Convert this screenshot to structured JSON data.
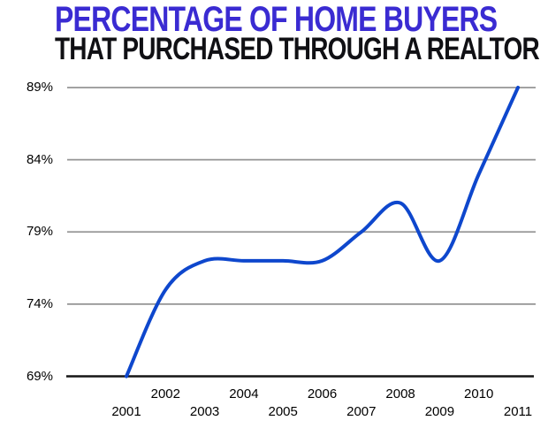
{
  "title": {
    "line1": "PERCENTAGE OF HOME BUYERS",
    "line2": "THAT PURCHASED THROUGH A REALTOR",
    "line1_color": "#3a2bd2",
    "line2_color": "#101014"
  },
  "chart_data": {
    "type": "line",
    "title": "PERCENTAGE OF HOME BUYERS THAT PURCHASED THROUGH A REALTOR",
    "series_name": "percent-purchased-through-realtor",
    "x": [
      2001,
      2002,
      2003,
      2004,
      2005,
      2006,
      2007,
      2008,
      2009,
      2010,
      2011
    ],
    "values": [
      69,
      75,
      77,
      77,
      77,
      77,
      79,
      81,
      77,
      83,
      89
    ],
    "xlabel": "",
    "ylabel": "",
    "ylim": [
      69,
      89
    ],
    "yticks": [
      {
        "label": "89%",
        "value": 89
      },
      {
        "label": "84%",
        "value": 84
      },
      {
        "label": "79%",
        "value": 79
      },
      {
        "label": "74%",
        "value": 74
      },
      {
        "label": "69%",
        "value": 69
      }
    ],
    "xticks": [
      {
        "label": "2001",
        "value": 2001
      },
      {
        "label": "2002",
        "value": 2002
      },
      {
        "label": "2003",
        "value": 2003
      },
      {
        "label": "2004",
        "value": 2004
      },
      {
        "label": "2005",
        "value": 2005
      },
      {
        "label": "2006",
        "value": 2006
      },
      {
        "label": "2007",
        "value": 2007
      },
      {
        "label": "2008",
        "value": 2008
      },
      {
        "label": "2009",
        "value": 2009
      },
      {
        "label": "2010",
        "value": 2010
      },
      {
        "label": "2011",
        "value": 2011
      }
    ],
    "grid": "horizontal",
    "legend": "none",
    "smooth": true,
    "line_color": "#0e47cd",
    "gridline_color": "#949494",
    "axis_color": "#151515",
    "tick_label_color": "#000000"
  }
}
